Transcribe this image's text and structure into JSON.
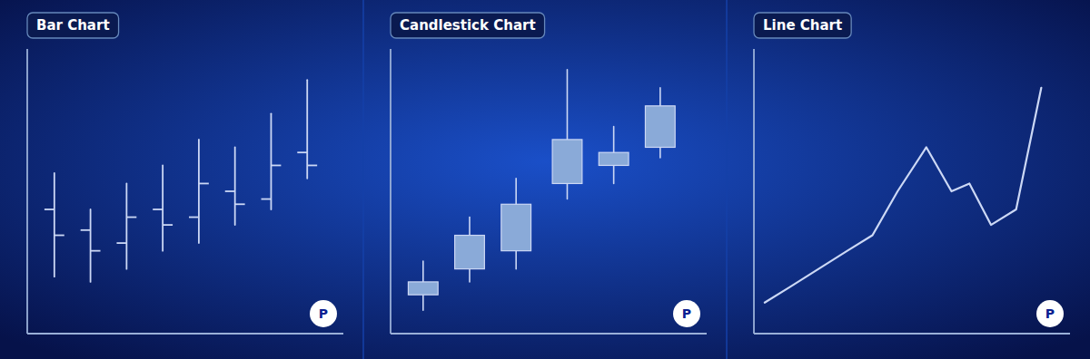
{
  "chart_data": [
    {
      "type": "ohlc",
      "title": "Bar Chart",
      "x": [
        0.8,
        1.6,
        2.4,
        3.2,
        4.0,
        4.8,
        5.6,
        6.4
      ],
      "open": [
        4.8,
        4.0,
        3.5,
        4.8,
        4.5,
        5.5,
        5.2,
        7.0
      ],
      "high": [
        6.2,
        4.8,
        5.8,
        6.5,
        7.5,
        7.2,
        8.5,
        9.8
      ],
      "low": [
        2.2,
        2.0,
        2.5,
        3.2,
        3.5,
        4.2,
        4.8,
        6.0
      ],
      "close": [
        3.8,
        3.2,
        4.5,
        4.2,
        5.8,
        5.0,
        6.5,
        6.5
      ],
      "xlim": [
        0.2,
        7.2
      ],
      "ylim": [
        0,
        11
      ],
      "tick_labels": false,
      "color": "#ccd8f5",
      "annotations": [
        "P"
      ]
    },
    {
      "type": "candlestick",
      "title": "Candlestick Chart",
      "x": [
        0.9,
        1.9,
        2.9,
        4.0,
        5.0,
        6.0
      ],
      "open": [
        2.0,
        2.5,
        3.2,
        5.8,
        6.5,
        7.2
      ],
      "high": [
        2.8,
        4.5,
        6.0,
        10.2,
        8.0,
        9.5
      ],
      "low": [
        0.9,
        2.0,
        2.5,
        5.2,
        5.8,
        6.8
      ],
      "close": [
        1.5,
        3.8,
        5.0,
        7.5,
        7.0,
        8.8
      ],
      "xlim": [
        0.2,
        7.0
      ],
      "ylim": [
        0,
        11
      ],
      "tick_labels": false,
      "color": "#ccd8f5",
      "annotations": [
        "P"
      ]
    },
    {
      "type": "line",
      "title": "Line Chart",
      "x": [
        0.5,
        1.2,
        2.0,
        2.8,
        3.5,
        4.2,
        5.0,
        5.7,
        6.2,
        6.8,
        7.5,
        8.2
      ],
      "values": [
        1.2,
        1.8,
        2.5,
        3.2,
        3.8,
        5.5,
        7.2,
        5.5,
        5.8,
        4.2,
        4.8,
        9.5
      ],
      "xlim": [
        0.2,
        9.0
      ],
      "ylim": [
        0,
        11
      ],
      "tick_labels": false,
      "color": "#ccd8f5",
      "annotations": [
        "P"
      ]
    }
  ]
}
